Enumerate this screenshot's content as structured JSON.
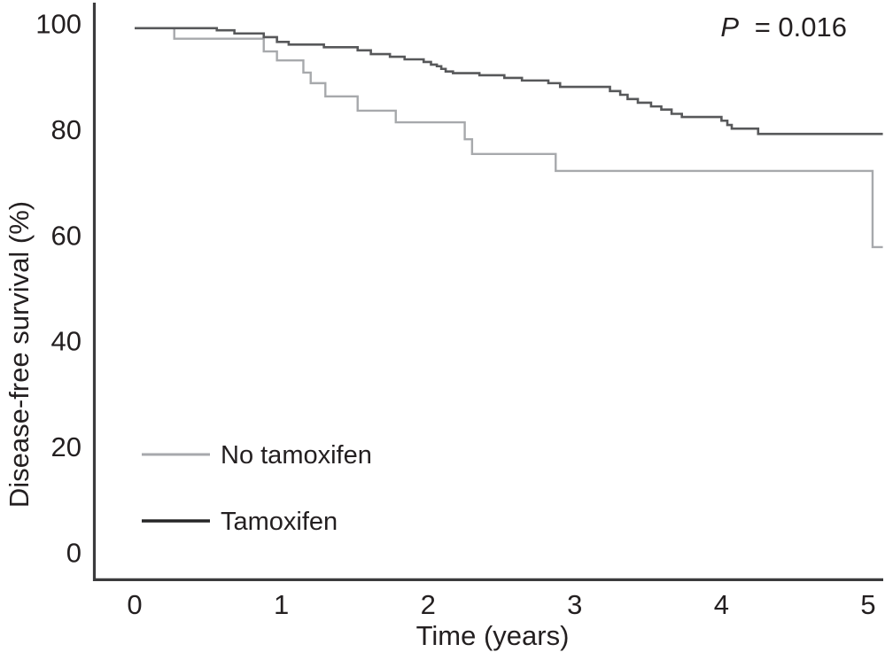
{
  "figure": {
    "p_label": "P",
    "p_value": "= 0.016"
  },
  "chart_data": {
    "type": "line",
    "subtype": "kaplan-meier-step-curves",
    "title": "",
    "xlabel": "Time (years)",
    "ylabel": "Disease-free survival (%)",
    "xlim": [
      0,
      5.15
    ],
    "ylim": [
      0,
      100
    ],
    "x_ticks": [
      0,
      1,
      2,
      3,
      4,
      5
    ],
    "y_ticks": [
      0,
      20,
      40,
      60,
      80,
      100
    ],
    "grid": false,
    "legend_position": "lower-left",
    "annotation": "P = 0.016",
    "series": [
      {
        "name": "No tamoxifen",
        "color": "#a7a9ac",
        "legend_color": "#a7a9ac",
        "stroke_width": 2.4,
        "t_end": 5.1,
        "points": [
          [
            0,
            99.2
          ],
          [
            0.27,
            97.2
          ],
          [
            0.88,
            94.8
          ],
          [
            0.97,
            93.1
          ],
          [
            1.15,
            90.8
          ],
          [
            1.2,
            88.8
          ],
          [
            1.3,
            86.3
          ],
          [
            1.52,
            83.6
          ],
          [
            1.78,
            81.4
          ],
          [
            2.25,
            78.2
          ],
          [
            2.3,
            75.4
          ],
          [
            2.87,
            72.2
          ],
          [
            5.03,
            57.8
          ]
        ]
      },
      {
        "name": "Tamoxifen",
        "color": "#57585a",
        "legend_color": "#262627",
        "stroke_width": 2.6,
        "t_end": 5.1,
        "points": [
          [
            0,
            99.2
          ],
          [
            0.56,
            98.8
          ],
          [
            0.68,
            98.2
          ],
          [
            0.88,
            97.5
          ],
          [
            0.97,
            96.6
          ],
          [
            1.05,
            96.1
          ],
          [
            1.29,
            95.6
          ],
          [
            1.52,
            95.0
          ],
          [
            1.61,
            94.3
          ],
          [
            1.74,
            93.8
          ],
          [
            1.84,
            93.3
          ],
          [
            1.97,
            92.8
          ],
          [
            2.02,
            92.3
          ],
          [
            2.06,
            92.0
          ],
          [
            2.09,
            91.5
          ],
          [
            2.12,
            91.0
          ],
          [
            2.17,
            90.7
          ],
          [
            2.35,
            90.3
          ],
          [
            2.52,
            89.8
          ],
          [
            2.64,
            89.3
          ],
          [
            2.82,
            88.8
          ],
          [
            2.9,
            88.1
          ],
          [
            3.24,
            87.3
          ],
          [
            3.31,
            86.6
          ],
          [
            3.36,
            85.8
          ],
          [
            3.43,
            85.1
          ],
          [
            3.52,
            84.4
          ],
          [
            3.59,
            83.8
          ],
          [
            3.66,
            83.0
          ],
          [
            3.73,
            82.4
          ],
          [
            4.0,
            81.7
          ],
          [
            4.04,
            80.9
          ],
          [
            4.07,
            80.2
          ],
          [
            4.25,
            79.2
          ]
        ]
      }
    ]
  }
}
